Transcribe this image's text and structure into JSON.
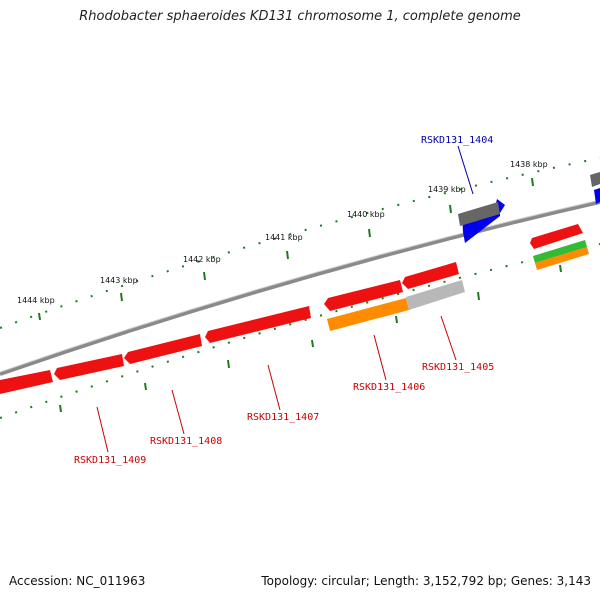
{
  "title": "Rhodobacter sphaeroides KD131 chromosome 1, complete genome",
  "footer": {
    "accession": "Accession: NC_011963",
    "summary": "Topology: circular; Length: 3,152,792 bp; Genes: 3,143"
  },
  "colors": {
    "backbone": "#8a8a8a",
    "ticks": "#1f7a1f",
    "label_red": "#cc0000",
    "label_blue": "#0000aa",
    "gene_red": "#ee1111",
    "gene_orange": "#ff8c00",
    "gene_gray": "#b8b8b8",
    "gene_darkgray": "#666666",
    "gene_blue": "#0000ee",
    "gene_green": "#33bb33"
  },
  "ticks": [
    {
      "label": "1444 kbp"
    },
    {
      "label": "1443 kbp"
    },
    {
      "label": "1442 kbp"
    },
    {
      "label": "1441 kbp"
    },
    {
      "label": "1440 kbp"
    },
    {
      "label": "1439 kbp"
    },
    {
      "label": "1438 kbp"
    }
  ],
  "genes": [
    {
      "name": "RSKD131_1404",
      "color": "blue"
    },
    {
      "name": "RSKD131_1405",
      "color": "red"
    },
    {
      "name": "RSKD131_1406",
      "color": "red"
    },
    {
      "name": "RSKD131_1407",
      "color": "red"
    },
    {
      "name": "RSKD131_1408",
      "color": "red"
    },
    {
      "name": "RSKD131_1409",
      "color": "red"
    }
  ]
}
